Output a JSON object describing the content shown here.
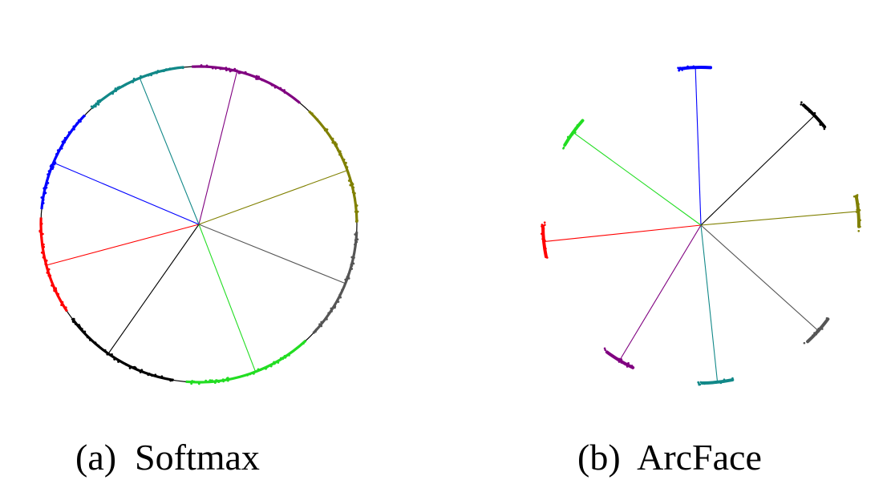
{
  "panels": [
    {
      "id": "softmax",
      "caption": "(a)  Softmax",
      "classes": [
        {
          "color": "#800080",
          "angle_deg": 76
        },
        {
          "color": "#808000",
          "angle_deg": 20
        },
        {
          "color": "#555555",
          "angle_deg": -22
        },
        {
          "color": "#22dd22",
          "angle_deg": -69
        },
        {
          "color": "#000000",
          "angle_deg": -125
        },
        {
          "color": "#ff0000",
          "angle_deg": -165
        },
        {
          "color": "#0000ff",
          "angle_deg": 157
        },
        {
          "color": "#118888",
          "angle_deg": 112
        }
      ]
    },
    {
      "id": "arcface",
      "caption": "(b)  ArcFace",
      "classes": [
        {
          "color": "#0000ff",
          "angle_deg": 92
        },
        {
          "color": "#000000",
          "angle_deg": 44
        },
        {
          "color": "#808000",
          "angle_deg": 5
        },
        {
          "color": "#555555",
          "angle_deg": -42
        },
        {
          "color": "#118888",
          "angle_deg": -84
        },
        {
          "color": "#800080",
          "angle_deg": -121
        },
        {
          "color": "#ff0000",
          "angle_deg": -174
        },
        {
          "color": "#22dd22",
          "angle_deg": 144
        }
      ]
    }
  ]
}
